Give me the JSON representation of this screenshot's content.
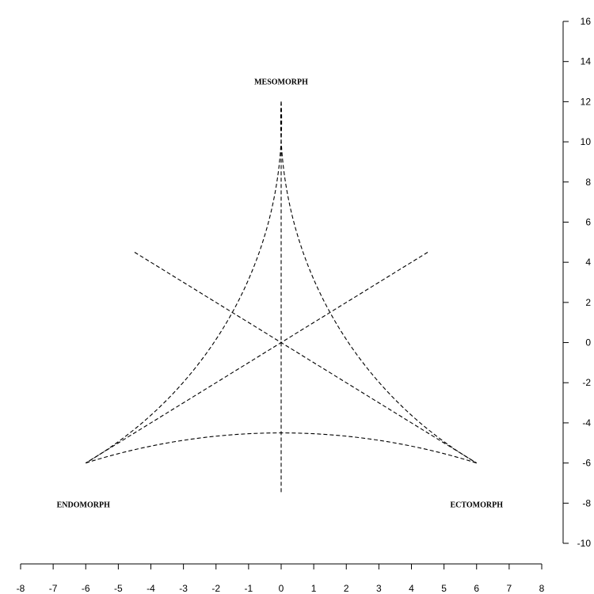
{
  "chart_data": {
    "type": "somatochart",
    "xlim": [
      -8,
      8
    ],
    "ylim": [
      -10,
      16
    ],
    "x_ticks": [
      -8,
      -7,
      -6,
      -5,
      -4,
      -3,
      -2,
      -1,
      0,
      1,
      2,
      3,
      4,
      5,
      6,
      7,
      8
    ],
    "y_ticks": [
      -10,
      -8,
      -6,
      -4,
      -2,
      0,
      2,
      4,
      6,
      8,
      10,
      12,
      14,
      16
    ],
    "grid": false,
    "vertices": [
      {
        "label": "MESOMORPH",
        "x": 0,
        "y": 12
      },
      {
        "label": "ENDOMORPH",
        "x": -6,
        "y": -6
      },
      {
        "label": "ECTOMORPH",
        "x": 6,
        "y": -6
      }
    ],
    "center": {
      "x": 0,
      "y": 0
    },
    "spokes": [
      {
        "x1": 0,
        "y1": 12,
        "x2": 0,
        "y2": -7.5
      },
      {
        "x1": -4.5,
        "y1": 4.5,
        "x2": 6,
        "y2": -6
      },
      {
        "x1": 4.5,
        "y1": 4.5,
        "x2": -6,
        "y2": -6
      }
    ],
    "arcs": [
      {
        "from": "MESOMORPH",
        "to": "ENDOMORPH",
        "through": {
          "x": -4.5,
          "y": 4.5
        }
      },
      {
        "from": "MESOMORPH",
        "to": "ECTOMORPH",
        "through": {
          "x": 4.5,
          "y": 4.5
        }
      },
      {
        "from": "ENDOMORPH",
        "to": "ECTOMORPH",
        "through": {
          "x": 0,
          "y": -7.5
        }
      }
    ],
    "line_style": "dashed",
    "line_color": "#000000"
  }
}
